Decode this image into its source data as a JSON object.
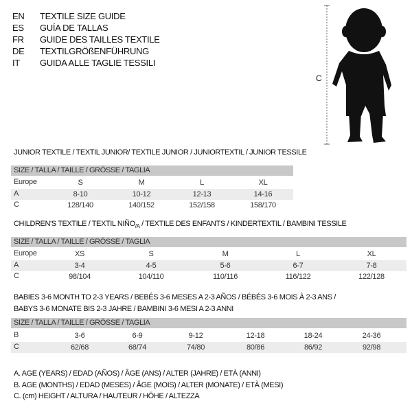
{
  "header": [
    {
      "code": "EN",
      "title": "TEXTILE SIZE GUIDE"
    },
    {
      "code": "ES",
      "title": "GUÍA DE TALLAS"
    },
    {
      "code": "FR",
      "title": "GUIDE DES TAILLES TEXTILE"
    },
    {
      "code": "DE",
      "title": "TEXTILGRÖßENFÜHRUNG"
    },
    {
      "code": "IT",
      "title": "GUIDA ALLE TAGLIE TESSILI"
    }
  ],
  "figure": {
    "measure_label": "C",
    "icon": "child-silhouette"
  },
  "size_header": "SIZE / TALLA / TAILLE / GRÖSSE / TAGLIA",
  "junior": {
    "title": "JUNIOR TEXTILE / TEXTIL JUNIOR/ TEXTILE JUNIOR / JUNIORTEXTIL / JUNIOR TESSILE",
    "rows": [
      {
        "label": "Europe",
        "values": [
          "S",
          "M",
          "L",
          "XL"
        ]
      },
      {
        "label": "A",
        "values": [
          "8-10",
          "10-12",
          "12-13",
          "14-16"
        ]
      },
      {
        "label": "C",
        "values": [
          "128/140",
          "140/152",
          "152/158",
          "158/170"
        ]
      }
    ]
  },
  "children": {
    "title": "CHILDREN'S TEXTILE / TEXTIL NIÑO/A / TEXTILE DES ENFANTS / KINDERTEXTIL / BAMBINI TESSILE",
    "rows": [
      {
        "label": "Europe",
        "values": [
          "XS",
          "S",
          "M",
          "L",
          "XL"
        ]
      },
      {
        "label": "A",
        "values": [
          "3-4",
          "4-5",
          "5-6",
          "6-7",
          "7-8"
        ]
      },
      {
        "label": "C",
        "values": [
          "98/104",
          "104/110",
          "110/116",
          "116/122",
          "122/128"
        ]
      }
    ]
  },
  "babies": {
    "title_line1": "BABIES 3-6 MONTH TO 2-3 YEARS / BEBÉS 3-6 MESES A 2-3 AÑOS / BÉBÉS 3-6 MOIS À 2-3 ANS /",
    "title_line2": "BABYS 3-6 MONATE BIS 2-3 JAHRE / BAMBINI 3-6 MESI A 2-3 ANNI",
    "rows": [
      {
        "label": "B",
        "values": [
          "3-6",
          "6-9",
          "9-12",
          "12-18",
          "18-24",
          "24-36"
        ]
      },
      {
        "label": "C",
        "values": [
          "62/68",
          "68/74",
          "74/80",
          "80/86",
          "86/92",
          "92/98"
        ]
      }
    ]
  },
  "legend": [
    "A. AGE (YEARS) / EDAD (AÑOS) / ÂGE (ANS) / ALTER (JAHRE) / ETÀ (ANNI)",
    "B. AGE (MONTHS) / EDAD (MESES) / ÂGE (MOIS) / ALTER (MONATE) / ETÀ (MESI)",
    "C. (cm) HEIGHT / ALTURA / HAUTEUR / HÖHE / ALTEZZA"
  ]
}
